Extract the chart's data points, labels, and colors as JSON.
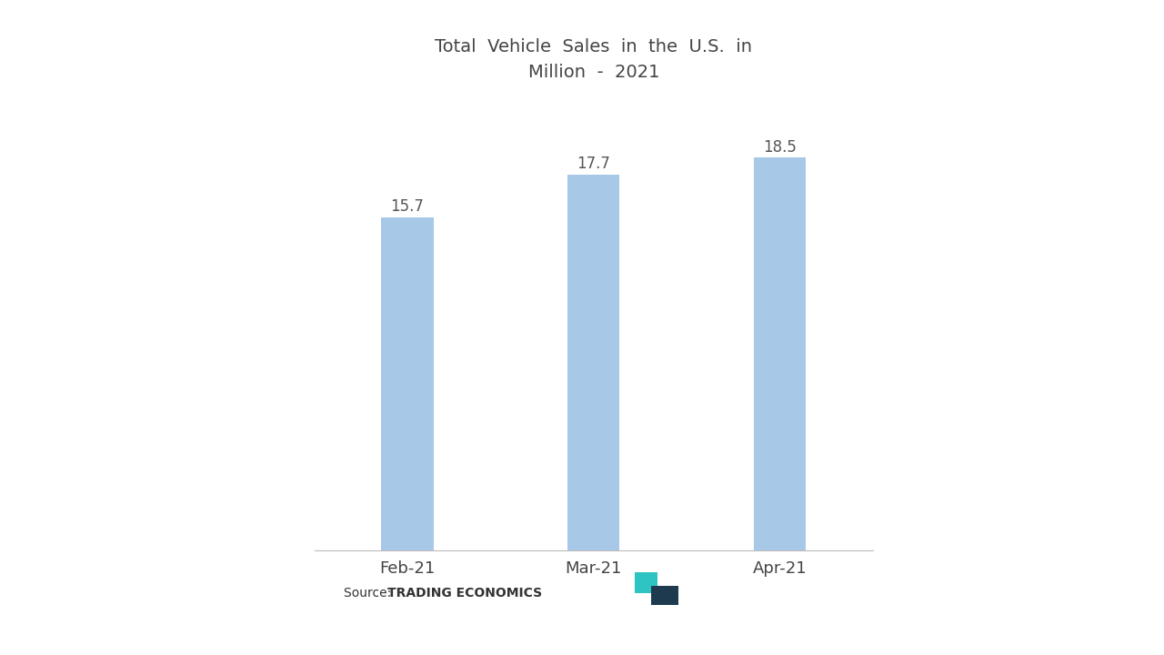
{
  "categories": [
    "Feb-21",
    "Mar-21",
    "Apr-21"
  ],
  "values": [
    15.7,
    17.7,
    18.5
  ],
  "bar_color": "#a8c8e8",
  "title_line1": "Total  Vehicle  Sales  in  the  U.S.  in",
  "title_line2": "Million  -  2021",
  "title_fontsize": 14,
  "bar_label_fontsize": 12,
  "tick_label_fontsize": 13,
  "source_normal": "Source: ",
  "source_bold": "TRADING ECONOMICS",
  "source_fontsize": 10,
  "background_color": "#ffffff",
  "ylim": [
    0,
    21
  ],
  "bar_width": 0.28,
  "teal_color": "#2ec4c4",
  "dark_color": "#1e3a4f"
}
